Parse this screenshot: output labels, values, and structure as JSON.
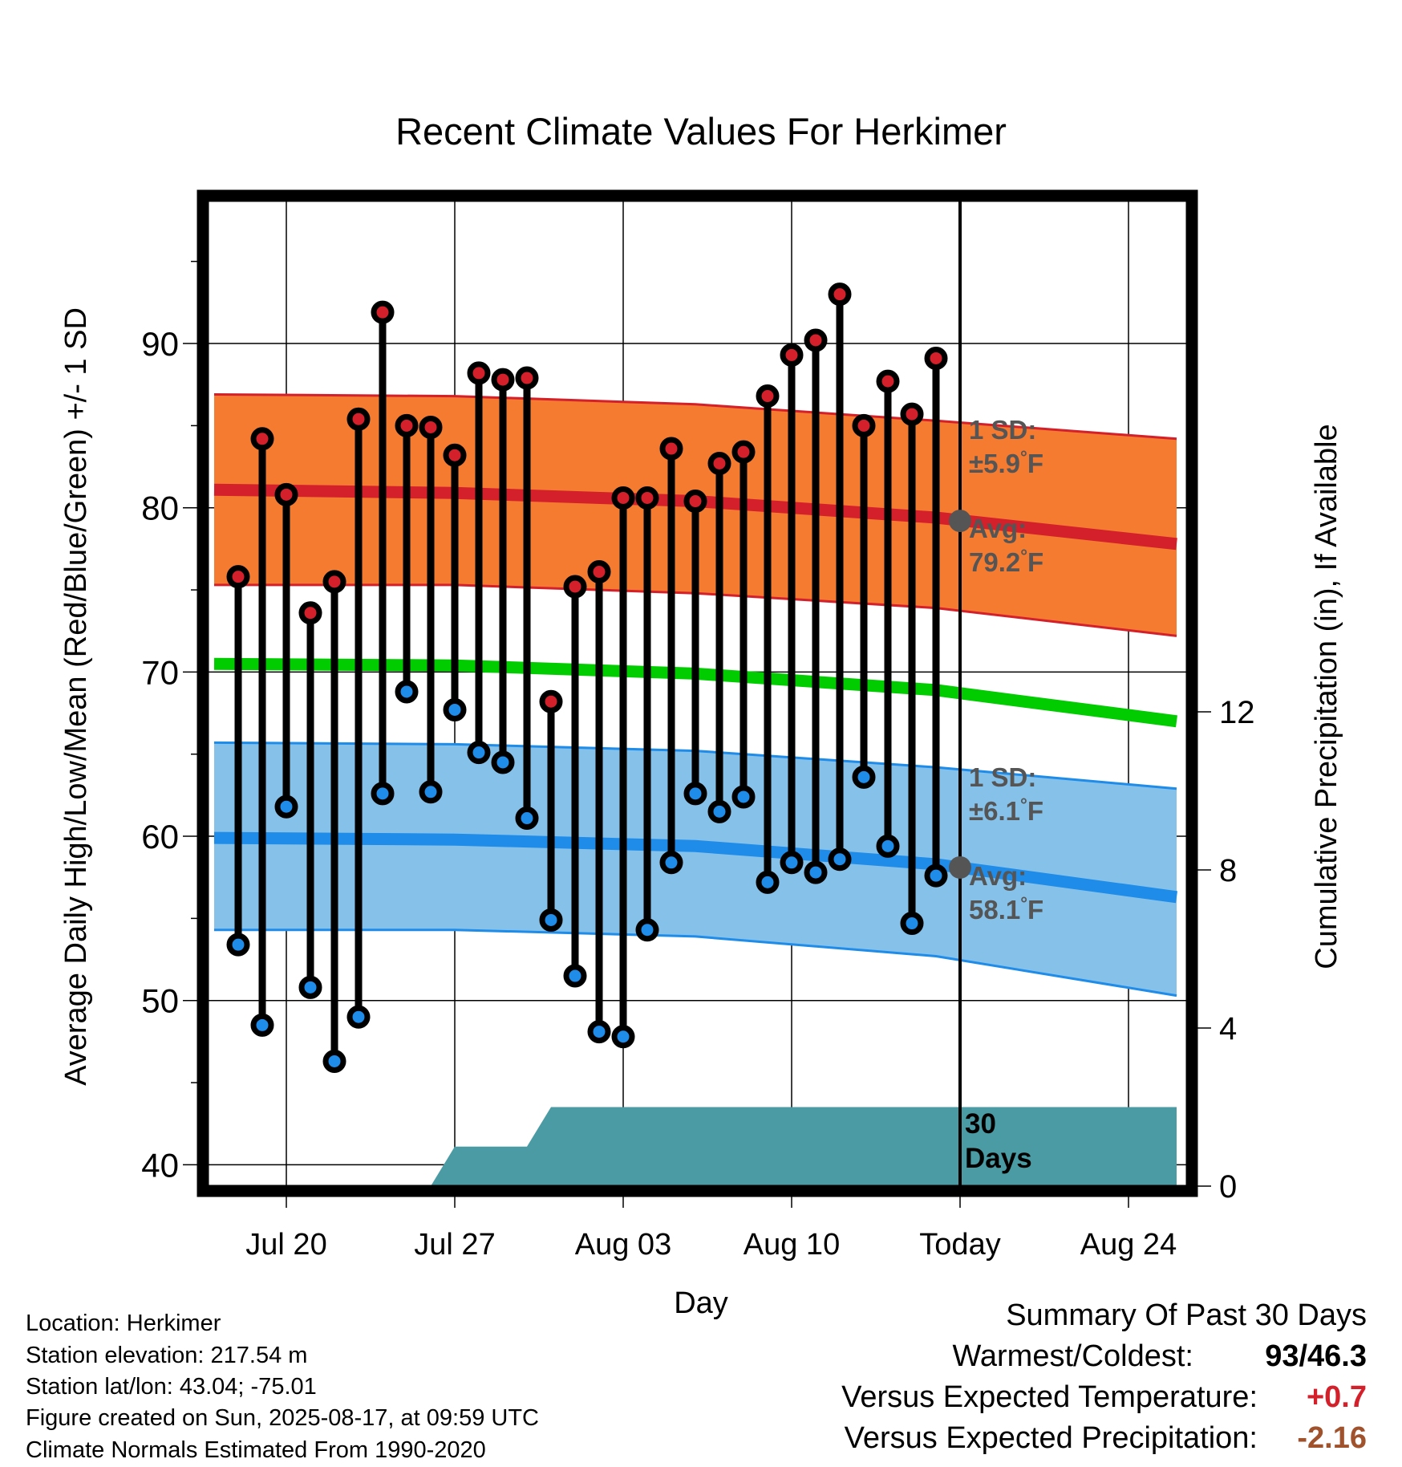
{
  "chart_data": {
    "type": "line",
    "title": "Recent Climate Values For Herkimer",
    "xlabel": "Day",
    "ylabel": "Average Daily High/Low/Mean (Red/Blue/Green) +/- 1 SD",
    "y2label": "Cumulative Precipitation (in), If Available",
    "ylim": [
      38.7,
      98.7
    ],
    "y2lim": [
      0,
      16
    ],
    "yticks": [
      40,
      50,
      60,
      70,
      80,
      90
    ],
    "y2ticks": [
      0,
      4,
      8,
      12
    ],
    "x_tick_labels": [
      "Jul 20",
      "Jul 27",
      "Aug 03",
      "Aug 10",
      "Today",
      "Aug 24"
    ],
    "xlim": [
      "2025-07-17",
      "2025-08-26"
    ],
    "grid": true,
    "today_marker": "2025-08-17",
    "dates": [
      "2025-07-18",
      "2025-07-19",
      "2025-07-20",
      "2025-07-21",
      "2025-07-22",
      "2025-07-23",
      "2025-07-24",
      "2025-07-25",
      "2025-07-26",
      "2025-07-27",
      "2025-07-28",
      "2025-07-29",
      "2025-07-30",
      "2025-07-31",
      "2025-08-01",
      "2025-08-02",
      "2025-08-03",
      "2025-08-04",
      "2025-08-05",
      "2025-08-06",
      "2025-08-07",
      "2025-08-08",
      "2025-08-09",
      "2025-08-10",
      "2025-08-11",
      "2025-08-12",
      "2025-08-13",
      "2025-08-14",
      "2025-08-15",
      "2025-08-16"
    ],
    "series": [
      {
        "name": "Daily High",
        "color": "#d3202a",
        "values": [
          75.8,
          84.2,
          80.8,
          73.6,
          75.5,
          85.4,
          91.9,
          85.0,
          84.9,
          83.2,
          88.2,
          87.8,
          87.9,
          68.2,
          75.2,
          76.1,
          80.6,
          80.6,
          83.6,
          80.4,
          82.7,
          83.4,
          86.8,
          89.3,
          90.2,
          93.0,
          85.0,
          87.7,
          85.7,
          89.1
        ]
      },
      {
        "name": "Daily Low",
        "color": "#1e8ce8",
        "values": [
          53.4,
          48.5,
          61.8,
          50.8,
          46.3,
          49.0,
          62.6,
          68.8,
          62.7,
          67.7,
          65.1,
          64.5,
          61.1,
          54.9,
          51.5,
          48.1,
          47.8,
          54.3,
          58.4,
          62.6,
          61.5,
          62.4,
          57.2,
          58.4,
          57.8,
          58.6,
          63.6,
          59.4,
          54.7,
          57.6
        ]
      }
    ],
    "normals": {
      "high_mean": {
        "color": "#d3202a",
        "x": [
          "2025-07-17",
          "2025-07-27",
          "2025-08-06",
          "2025-08-16",
          "2025-08-26"
        ],
        "values": [
          81.1,
          80.9,
          80.4,
          79.4,
          77.8
        ]
      },
      "high_upper": {
        "x": [
          "2025-07-17",
          "2025-07-27",
          "2025-08-06",
          "2025-08-16",
          "2025-08-26"
        ],
        "values": [
          86.9,
          86.8,
          86.3,
          85.3,
          84.2
        ]
      },
      "high_lower": {
        "x": [
          "2025-07-17",
          "2025-07-27",
          "2025-08-06",
          "2025-08-16",
          "2025-08-26"
        ],
        "values": [
          75.3,
          75.3,
          74.8,
          73.9,
          72.2
        ]
      },
      "mean": {
        "color": "#00cc00",
        "x": [
          "2025-07-17",
          "2025-07-27",
          "2025-08-06",
          "2025-08-16",
          "2025-08-26"
        ],
        "values": [
          70.5,
          70.4,
          69.9,
          68.9,
          67.0
        ]
      },
      "low_mean": {
        "color": "#1e8ce8",
        "x": [
          "2025-07-17",
          "2025-07-27",
          "2025-08-06",
          "2025-08-16",
          "2025-08-26"
        ],
        "values": [
          59.9,
          59.8,
          59.4,
          58.3,
          56.3
        ]
      },
      "low_upper": {
        "x": [
          "2025-07-17",
          "2025-07-27",
          "2025-08-06",
          "2025-08-16",
          "2025-08-26"
        ],
        "values": [
          65.7,
          65.6,
          65.2,
          64.2,
          62.9
        ]
      },
      "low_lower": {
        "x": [
          "2025-07-17",
          "2025-07-27",
          "2025-08-06",
          "2025-08-16",
          "2025-08-26"
        ],
        "values": [
          54.3,
          54.3,
          53.9,
          52.7,
          50.3
        ]
      }
    },
    "precipitation": {
      "color": "#4a9ba3",
      "x": [
        "2025-07-17",
        "2025-07-26",
        "2025-07-27",
        "2025-07-30",
        "2025-07-31",
        "2025-08-26"
      ],
      "values": [
        0,
        0,
        1.0,
        1.0,
        2.0,
        2.0
      ]
    },
    "annotations": {
      "high_sd": [
        "1 SD:",
        "±5.9",
        "°",
        "F"
      ],
      "high_avg": [
        "Avg:",
        "79.2",
        "°",
        "F"
      ],
      "low_sd": [
        "1 SD:",
        "±6.1",
        "°",
        "F"
      ],
      "low_avg": [
        "Avg:",
        "58.1",
        "°",
        "F"
      ],
      "days": [
        "30",
        "Days"
      ],
      "today_high_avg": 79.2,
      "today_low_avg": 58.1
    }
  },
  "info": {
    "location": "Location: Herkimer",
    "elevation": "Station elevation: 217.54 m",
    "latlon": "Station lat/lon: 43.04; -75.01",
    "created": "Figure created on Sun, 2025-08-17, at 09:59 UTC",
    "normals": "Climate Normals Estimated From 1990-2020"
  },
  "summary": {
    "title": "Summary Of Past 30 Days",
    "warm_cold_label": "Warmest/Coldest:",
    "warm_cold_value": "93/46.3",
    "temp_label": "Versus Expected Temperature:",
    "temp_value": "+0.7",
    "temp_color": "#d3202a",
    "precip_label": "Versus Expected Precipitation:",
    "precip_value": "-2.16",
    "precip_color": "#a0522d"
  }
}
